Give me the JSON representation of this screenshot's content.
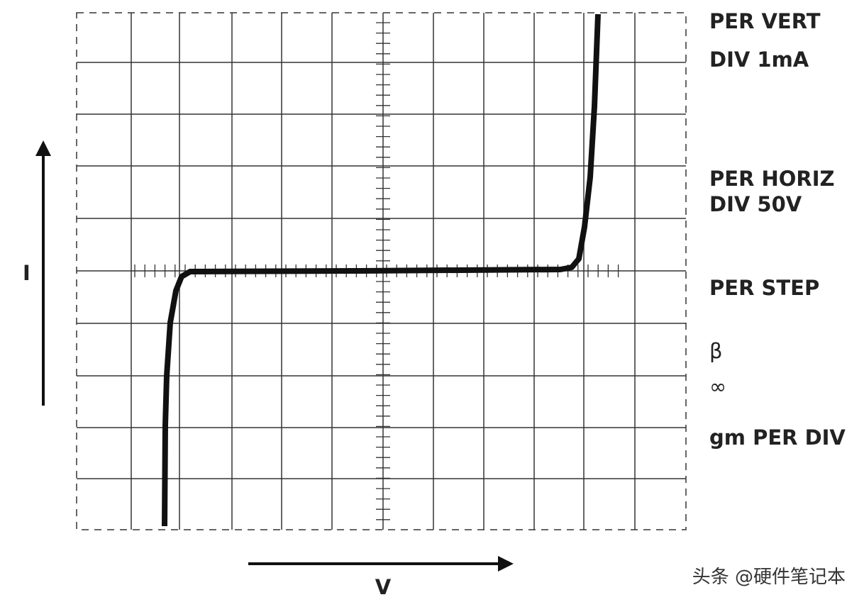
{
  "side_labels": [
    "PER VERT",
    "DIV 1mA",
    "PER HORIZ",
    "DIV 50V",
    "PER STEP",
    "β",
    "∞",
    "gm PER DIV"
  ],
  "axis_labels": {
    "vertical": "I",
    "horizontal": "V"
  },
  "watermark": "头条 @硬件笔记本"
}
